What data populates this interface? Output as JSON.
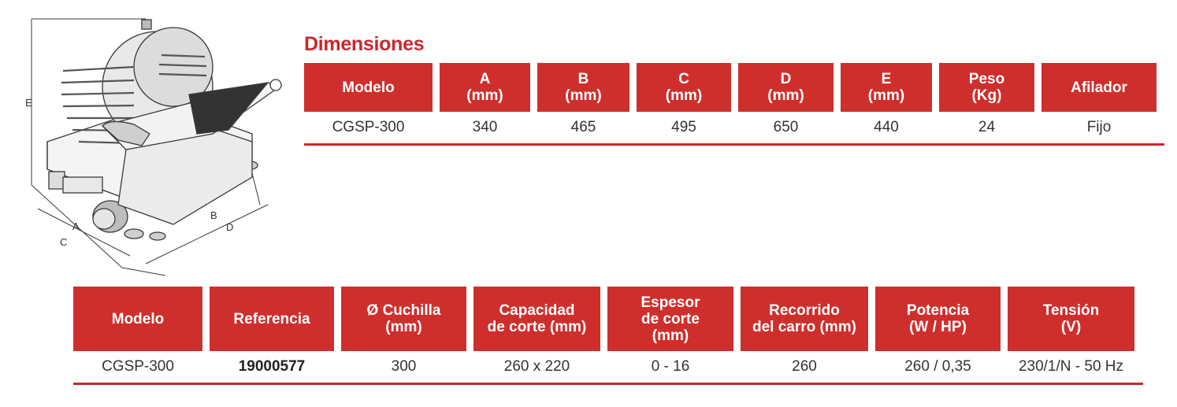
{
  "title": "Dimensiones",
  "illustration": {
    "labels": {
      "a": "A",
      "b": "B",
      "c": "C",
      "d": "D",
      "e": "E"
    }
  },
  "dimensions": {
    "headers": [
      "Modelo",
      "A\n(mm)",
      "B\n(mm)",
      "C\n(mm)",
      "D\n(mm)",
      "E\n(mm)",
      "Peso\n(Kg)",
      "Afilador"
    ],
    "values": [
      "CGSP-300",
      "340",
      "465",
      "495",
      "650",
      "440",
      "24",
      "Fijo"
    ]
  },
  "specs": {
    "headers": [
      "Modelo",
      "Referencia",
      "Ø Cuchilla\n(mm)",
      "Capacidad\nde corte (mm)",
      "Espesor\nde corte\n(mm)",
      "Recorrido\ndel carro (mm)",
      "Potencia\n(W / HP)",
      "Tensión\n(V)"
    ],
    "values": [
      "CGSP-300",
      "19000577",
      "300",
      "260 x 220",
      "0 - 16",
      "260",
      "260 / 0,35",
      "230/1/N - 50 Hz"
    ]
  },
  "colors": {
    "accent": "#cf2f2c",
    "title": "#c8282d"
  }
}
